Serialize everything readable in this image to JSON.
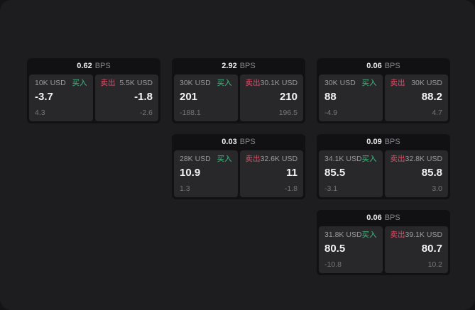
{
  "labels": {
    "bps": "BPS",
    "buy": "买入",
    "sell": "卖出"
  },
  "colors": {
    "buy_green": "#3dbd80",
    "sell_red": "#df5069",
    "card_bg": "#111113",
    "panel_bg": "#28282a",
    "app_bg": "#1d1d1f"
  },
  "cards": [
    {
      "bps": "0.62",
      "row": 1,
      "col": 1,
      "buy": {
        "amount": "10K USD",
        "price": "-3.7",
        "delta": "4.3"
      },
      "sell": {
        "amount": "5.5K USD",
        "price": "-1.8",
        "delta": "-2.6"
      }
    },
    {
      "bps": "2.92",
      "row": 1,
      "col": 2,
      "buy": {
        "amount": "30K USD",
        "price": "201",
        "delta": "-188.1"
      },
      "sell": {
        "amount": "30.1K USD",
        "price": "210",
        "delta": "196.5"
      }
    },
    {
      "bps": "0.06",
      "row": 1,
      "col": 3,
      "buy": {
        "amount": "30K USD",
        "price": "88",
        "delta": "-4.9"
      },
      "sell": {
        "amount": "30K USD",
        "price": "88.2",
        "delta": "4.7"
      }
    },
    {
      "bps": "0.03",
      "row": 2,
      "col": 2,
      "buy": {
        "amount": "28K USD",
        "price": "10.9",
        "delta": "1.3"
      },
      "sell": {
        "amount": "32.6K USD",
        "price": "11",
        "delta": "-1.8"
      }
    },
    {
      "bps": "0.09",
      "row": 2,
      "col": 3,
      "buy": {
        "amount": "34.1K USD",
        "price": "85.5",
        "delta": "-3.1"
      },
      "sell": {
        "amount": "32.8K USD",
        "price": "85.8",
        "delta": "3.0"
      }
    },
    {
      "bps": "0.06",
      "row": 3,
      "col": 3,
      "buy": {
        "amount": "31.8K USD",
        "price": "80.5",
        "delta": "-10.8"
      },
      "sell": {
        "amount": "39.1K USD",
        "price": "80.7",
        "delta": "10.2"
      }
    }
  ]
}
